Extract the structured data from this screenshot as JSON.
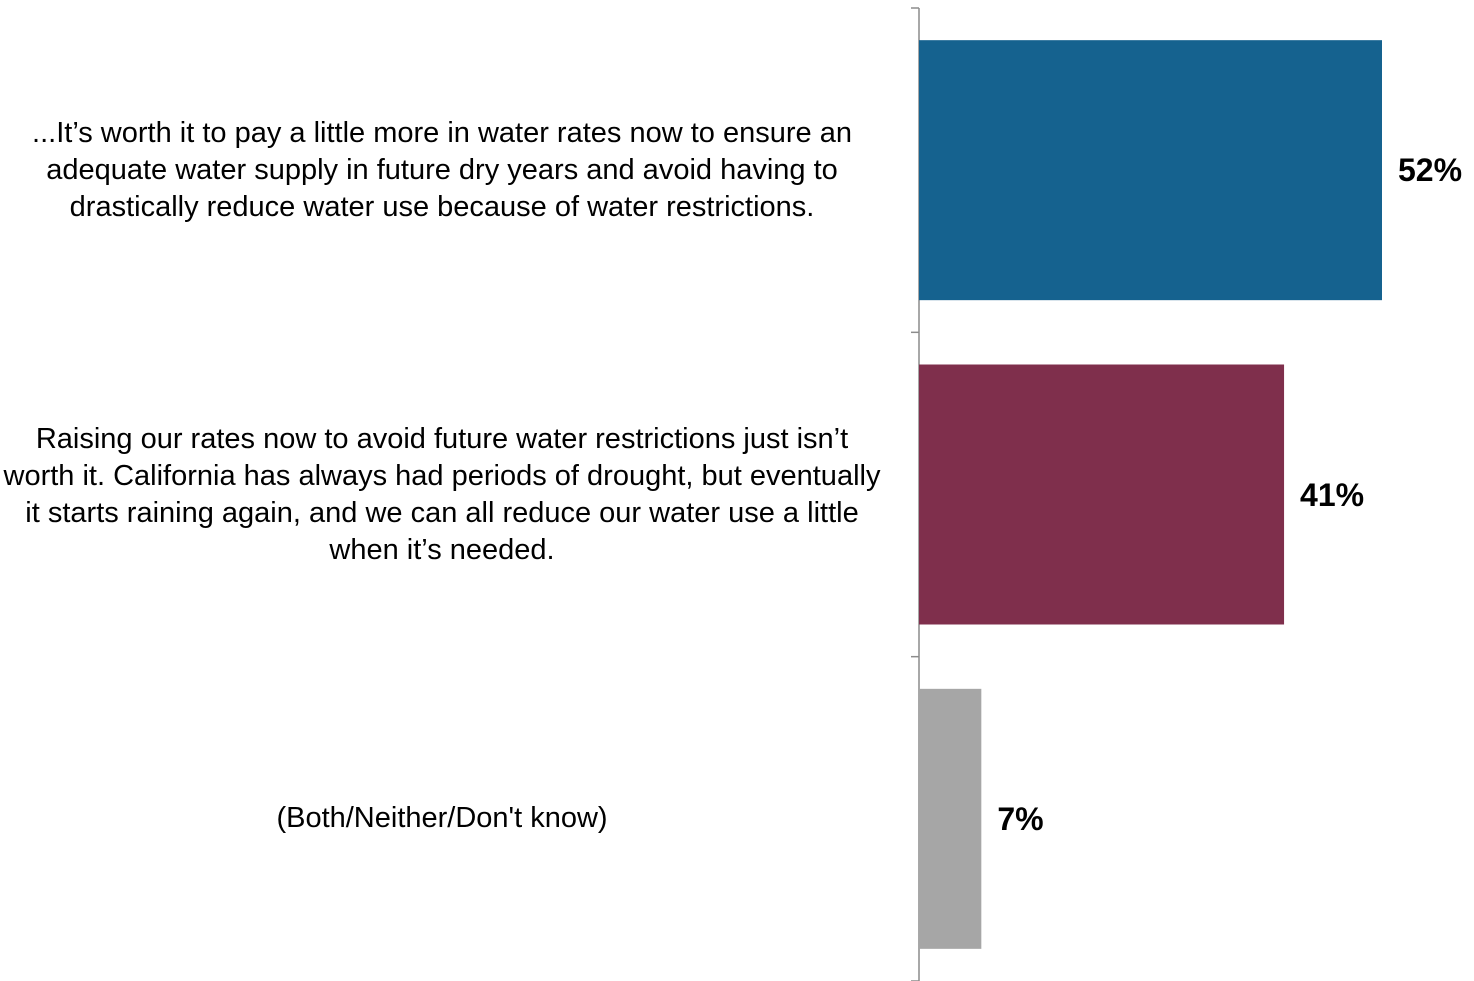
{
  "chart_data": {
    "type": "bar",
    "orientation": "horizontal",
    "categories": [
      "...It’s worth it to pay a little more in water rates now to ensure an adequate water supply in future dry years and avoid having to drastically reduce water use because of water restrictions.",
      "Raising our rates now to avoid future water restrictions just isn’t worth it. California has always had periods of drought, but eventually it starts raining again, and we can all reduce our water use a little when it’s needed.",
      "(Both/Neither/Don't know)"
    ],
    "values": [
      52,
      41,
      7
    ],
    "value_labels": [
      "52%",
      "41%",
      "7%"
    ],
    "colors": [
      "#15628F",
      "#7F2F4C",
      "#A6A6A6"
    ],
    "xlim": [
      0,
      62
    ],
    "title": "",
    "xlabel": "",
    "ylabel": "",
    "grid": false,
    "legend": "none"
  }
}
